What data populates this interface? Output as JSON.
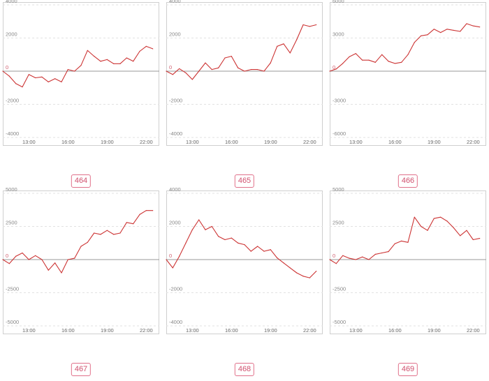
{
  "chart_data": [
    {
      "type": "line",
      "ylim": [
        -4000,
        4000
      ],
      "y_ticks": [
        4000,
        2000,
        0,
        -2000,
        -4000
      ],
      "x_ticks": [
        "13:00",
        "16:00",
        "19:00",
        "22:00"
      ],
      "x_start": "11:00",
      "x_end": "23:00",
      "line_color": "#cc3333",
      "grid": "horizontal-dashed",
      "series": [
        {
          "x": [
            "11:00",
            "11:30",
            "12:00",
            "12:30",
            "13:00",
            "13:30",
            "14:00",
            "14:30",
            "15:00",
            "15:30",
            "16:00",
            "16:30",
            "17:00",
            "17:30",
            "18:00",
            "18:30",
            "19:00",
            "19:30",
            "20:00",
            "20:30",
            "21:00",
            "21:30",
            "22:00",
            "22:30"
          ],
          "values": [
            0,
            -300,
            -750,
            -950,
            -200,
            -400,
            -350,
            -650,
            -450,
            -650,
            100,
            0,
            350,
            1250,
            900,
            600,
            700,
            450,
            450,
            800,
            600,
            1200,
            1500,
            1350
          ]
        }
      ],
      "label": "464"
    },
    {
      "type": "line",
      "ylim": [
        -4000,
        4000
      ],
      "y_ticks": [
        4000,
        2000,
        0,
        -2000,
        -4000
      ],
      "x_ticks": [
        "13:00",
        "16:00",
        "19:00",
        "22:00"
      ],
      "x_start": "11:00",
      "x_end": "23:00",
      "line_color": "#cc3333",
      "grid": "horizontal-dashed",
      "series": [
        {
          "x": [
            "11:00",
            "11:30",
            "12:00",
            "12:30",
            "13:00",
            "13:30",
            "14:00",
            "14:30",
            "15:00",
            "15:30",
            "16:00",
            "16:30",
            "17:00",
            "17:30",
            "18:00",
            "18:30",
            "19:00",
            "19:30",
            "20:00",
            "20:30",
            "21:00",
            "21:30",
            "22:00",
            "22:30"
          ],
          "values": [
            0,
            -200,
            150,
            -100,
            -500,
            0,
            500,
            100,
            200,
            800,
            900,
            200,
            0,
            100,
            100,
            0,
            500,
            1500,
            1650,
            1100,
            1900,
            2800,
            2700,
            2800
          ]
        }
      ],
      "label": "465"
    },
    {
      "type": "line",
      "ylim": [
        -6000,
        6000
      ],
      "y_ticks": [
        6000,
        3000,
        0,
        -3000,
        -6000
      ],
      "x_ticks": [
        "13:00",
        "16:00",
        "19:00",
        "22:00"
      ],
      "x_start": "11:00",
      "x_end": "23:00",
      "line_color": "#cc3333",
      "grid": "horizontal-dashed",
      "series": [
        {
          "x": [
            "11:00",
            "11:30",
            "12:00",
            "12:30",
            "13:00",
            "13:30",
            "14:00",
            "14:30",
            "15:00",
            "15:30",
            "16:00",
            "16:30",
            "17:00",
            "17:30",
            "18:00",
            "18:30",
            "19:00",
            "19:30",
            "20:00",
            "20:30",
            "21:00",
            "21:30",
            "22:00",
            "22:30"
          ],
          "values": [
            0,
            200,
            700,
            1300,
            1600,
            1000,
            1000,
            800,
            1500,
            900,
            700,
            800,
            1500,
            2600,
            3200,
            3300,
            3800,
            3500,
            3800,
            3700,
            3600,
            4300,
            4100,
            4000
          ]
        }
      ],
      "label": "466"
    },
    {
      "type": "line",
      "ylim": [
        -5000,
        5000
      ],
      "y_ticks": [
        5000,
        2500,
        0,
        -2500,
        -5000
      ],
      "x_ticks": [
        "13:00",
        "16:00",
        "19:00",
        "22:00"
      ],
      "x_start": "11:00",
      "x_end": "23:00",
      "line_color": "#cc3333",
      "grid": "horizontal-dashed",
      "series": [
        {
          "x": [
            "11:00",
            "11:30",
            "12:00",
            "12:30",
            "13:00",
            "13:30",
            "14:00",
            "14:30",
            "15:00",
            "15:30",
            "16:00",
            "16:30",
            "17:00",
            "17:30",
            "18:00",
            "18:30",
            "19:00",
            "19:30",
            "20:00",
            "20:30",
            "21:00",
            "21:30",
            "22:00",
            "22:30"
          ],
          "values": [
            0,
            -300,
            250,
            500,
            0,
            300,
            0,
            -800,
            -250,
            -1000,
            0,
            100,
            1000,
            1300,
            2000,
            1900,
            2200,
            1900,
            2000,
            2800,
            2700,
            3400,
            3700,
            3700
          ]
        }
      ],
      "label": "467"
    },
    {
      "type": "line",
      "ylim": [
        -4000,
        4000
      ],
      "y_ticks": [
        4000,
        2000,
        0,
        -2000,
        -4000
      ],
      "x_ticks": [
        "13:00",
        "16:00",
        "19:00",
        "22:00"
      ],
      "x_start": "11:00",
      "x_end": "23:00",
      "line_color": "#cc3333",
      "grid": "horizontal-dashed",
      "series": [
        {
          "x": [
            "11:00",
            "11:30",
            "12:00",
            "12:30",
            "13:00",
            "13:30",
            "14:00",
            "14:30",
            "15:00",
            "15:30",
            "16:00",
            "16:30",
            "17:00",
            "17:30",
            "18:00",
            "18:30",
            "19:00",
            "19:30",
            "20:00",
            "20:30",
            "21:00",
            "21:30",
            "22:00",
            "22:30"
          ],
          "values": [
            0,
            -500,
            200,
            1000,
            1800,
            2400,
            1800,
            2000,
            1400,
            1200,
            1300,
            1000,
            900,
            500,
            800,
            500,
            600,
            100,
            -200,
            -500,
            -800,
            -1000,
            -1100,
            -700
          ]
        }
      ],
      "label": "468"
    },
    {
      "type": "line",
      "ylim": [
        -5000,
        5000
      ],
      "y_ticks": [
        5000,
        2500,
        0,
        -2500,
        -5000
      ],
      "x_ticks": [
        "13:00",
        "16:00",
        "19:00",
        "22:00"
      ],
      "x_start": "11:00",
      "x_end": "23:00",
      "line_color": "#cc3333",
      "grid": "horizontal-dashed",
      "series": [
        {
          "x": [
            "11:00",
            "11:30",
            "12:00",
            "12:30",
            "13:00",
            "13:30",
            "14:00",
            "14:30",
            "15:00",
            "15:30",
            "16:00",
            "16:30",
            "17:00",
            "17:30",
            "18:00",
            "18:30",
            "19:00",
            "19:30",
            "20:00",
            "20:30",
            "21:00",
            "21:30",
            "22:00",
            "22:30"
          ],
          "values": [
            0,
            -300,
            300,
            100,
            0,
            200,
            0,
            400,
            500,
            600,
            1200,
            1400,
            1300,
            3200,
            2500,
            2200,
            3100,
            3200,
            2900,
            2400,
            1800,
            2200,
            1500,
            1600
          ]
        }
      ],
      "label": "469"
    }
  ]
}
